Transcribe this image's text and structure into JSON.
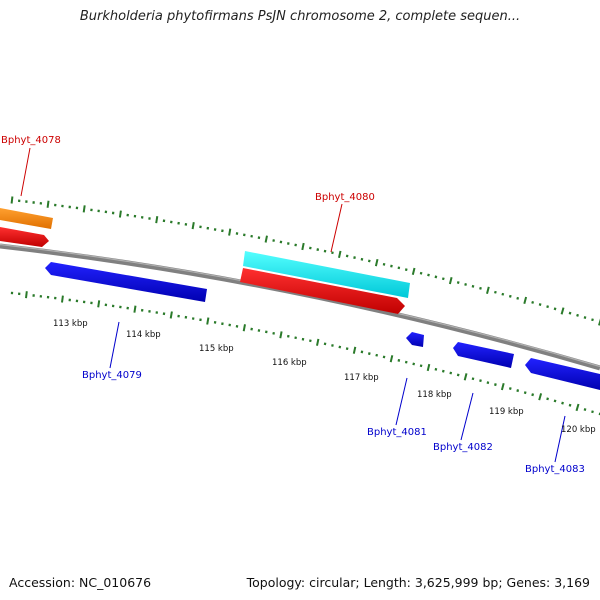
{
  "title": "Burkholderia phytofirmans PsJN chromosome 2, complete sequen...",
  "footer": {
    "accession": "Accession: NC_010676",
    "topology": "Topology: circular; Length: 3,625,999 bp; Genes: 3,169"
  },
  "colors": {
    "forward_label": "#cc0000",
    "reverse_label": "#0000cc",
    "tick": "#2a7a2a",
    "backbone": "#808080"
  },
  "scale_labels": [
    "113 kbp",
    "114 kbp",
    "115 kbp",
    "116 kbp",
    "117 kbp",
    "118 kbp",
    "119 kbp",
    "120 kbp"
  ],
  "genes": [
    {
      "id": "Bphyt_4078",
      "label": "Bphyt_4078",
      "strand": "forward",
      "color": "#cc0000"
    },
    {
      "id": "Bphyt_4079",
      "label": "Bphyt_4079",
      "strand": "reverse",
      "color": "#0000cc"
    },
    {
      "id": "Bphyt_4080",
      "label": "Bphyt_4080",
      "strand": "forward",
      "color": "#cc0000"
    },
    {
      "id": "Bphyt_4081",
      "label": "Bphyt_4081",
      "strand": "reverse",
      "color": "#0000cc"
    },
    {
      "id": "Bphyt_4082",
      "label": "Bphyt_4082",
      "strand": "reverse",
      "color": "#0000cc"
    },
    {
      "id": "Bphyt_4083",
      "label": "Bphyt_4083",
      "strand": "reverse",
      "color": "#0000cc"
    }
  ]
}
